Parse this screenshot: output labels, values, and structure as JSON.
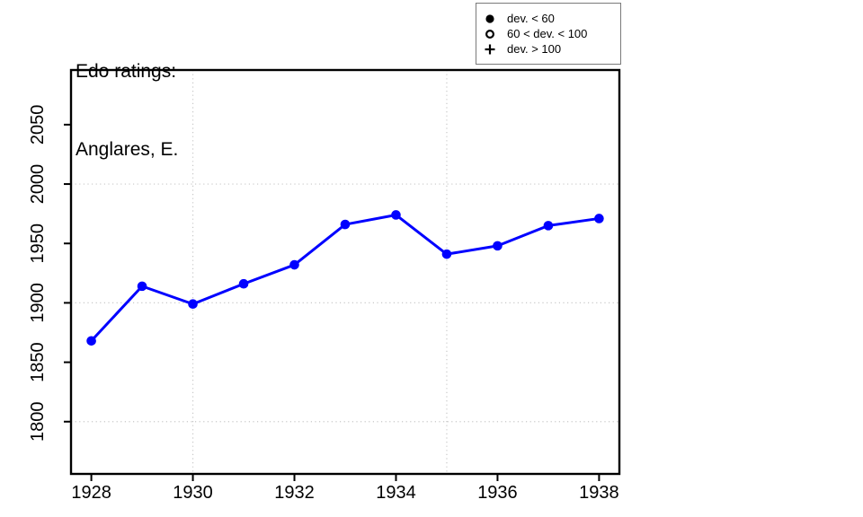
{
  "title": {
    "line1": "Edo ratings:",
    "line2": "Anglares, E."
  },
  "legend": {
    "items": [
      {
        "symbol": "filled-circle",
        "label": "dev. < 60"
      },
      {
        "symbol": "open-circle",
        "label": "60 < dev. < 100"
      },
      {
        "symbol": "plus",
        "label": "dev. > 100"
      }
    ]
  },
  "chart_data": {
    "type": "line",
    "title": "Edo ratings: Anglares, E.",
    "series_name": "Anglares, E.",
    "x": [
      1928,
      1929,
      1930,
      1931,
      1932,
      1933,
      1934,
      1935,
      1936,
      1937,
      1938
    ],
    "values": [
      1868,
      1914,
      1899,
      1916,
      1932,
      1966,
      1974,
      1941,
      1948,
      1965,
      1971
    ],
    "point_symbol": "filled-circle",
    "xlabel": "",
    "ylabel": "",
    "x_ticks": [
      1928,
      1930,
      1932,
      1934,
      1936,
      1938
    ],
    "y_ticks": [
      1800,
      1850,
      1900,
      1950,
      2000,
      2050
    ],
    "x_gridlines": [
      1930,
      1935
    ],
    "y_gridlines": [
      1800,
      1900,
      2000
    ],
    "xlim": [
      1927.6,
      1938.4
    ],
    "ylim": [
      1756,
      2096
    ],
    "grid": "dotted",
    "legend_position": "top-right",
    "line_color": "#0000ff",
    "point_color": "#0000ff",
    "grid_color": "#c8c8c8",
    "axis_color": "#000000",
    "text_color": "#000000",
    "background_color": "#ffffff"
  }
}
